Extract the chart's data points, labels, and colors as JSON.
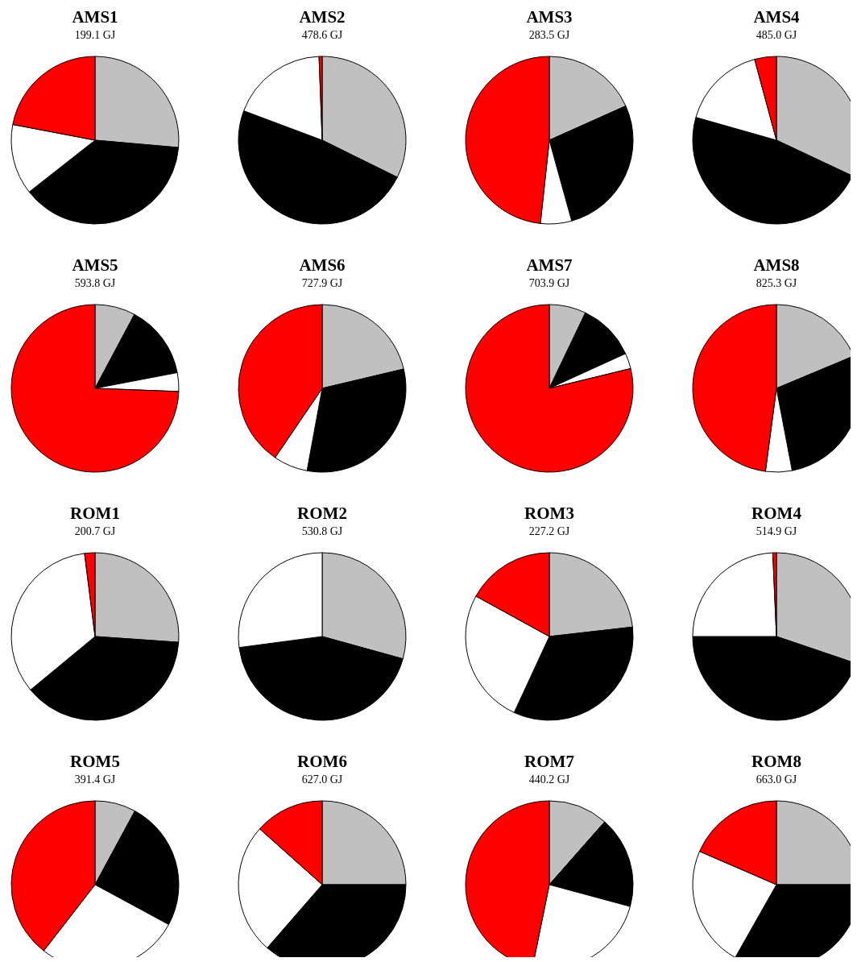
{
  "chart_data": [
    {
      "type": "pie",
      "title": "AMS1",
      "subtitle": "199.1 GJ",
      "categories": [
        null,
        null,
        null,
        null
      ],
      "values": [
        26.4,
        38.0,
        13.6,
        22.0
      ],
      "colors": [
        "#c0c0c0",
        "#000000",
        "#ffffff",
        "#ff0000"
      ]
    },
    {
      "type": "pie",
      "title": "AMS2",
      "subtitle": "478.6 GJ",
      "categories": [
        null,
        null,
        null,
        null
      ],
      "values": [
        32.3,
        48.4,
        18.7,
        0.6
      ],
      "colors": [
        "#c0c0c0",
        "#000000",
        "#ffffff",
        "#ff0000"
      ]
    },
    {
      "type": "pie",
      "title": "AMS3",
      "subtitle": "283.5 GJ",
      "categories": [
        null,
        null,
        null,
        null
      ],
      "values": [
        18.3,
        27.4,
        6.0,
        48.3
      ],
      "colors": [
        "#c0c0c0",
        "#000000",
        "#ffffff",
        "#ff0000"
      ]
    },
    {
      "type": "pie",
      "title": "AMS4",
      "subtitle": "485.0 GJ",
      "categories": [
        null,
        null,
        null,
        null
      ],
      "values": [
        32.0,
        47.4,
        16.4,
        4.2
      ],
      "colors": [
        "#c0c0c0",
        "#000000",
        "#ffffff",
        "#ff0000"
      ]
    },
    {
      "type": "pie",
      "title": "AMS5",
      "subtitle": "593.8 GJ",
      "categories": [
        null,
        null,
        null,
        null
      ],
      "values": [
        7.8,
        14.2,
        3.6,
        74.4
      ],
      "colors": [
        "#c0c0c0",
        "#000000",
        "#ffffff",
        "#ff0000"
      ]
    },
    {
      "type": "pie",
      "title": "AMS6",
      "subtitle": "727.9 GJ",
      "categories": [
        null,
        null,
        null,
        null
      ],
      "values": [
        21.3,
        31.6,
        6.6,
        40.5
      ],
      "colors": [
        "#c0c0c0",
        "#000000",
        "#ffffff",
        "#ff0000"
      ]
    },
    {
      "type": "pie",
      "title": "AMS7",
      "subtitle": "703.9 GJ",
      "categories": [
        null,
        null,
        null,
        null
      ],
      "values": [
        7.1,
        11.1,
        3.0,
        78.8
      ],
      "colors": [
        "#c0c0c0",
        "#000000",
        "#ffffff",
        "#ff0000"
      ]
    },
    {
      "type": "pie",
      "title": "AMS8",
      "subtitle": "825.3 GJ",
      "categories": [
        null,
        null,
        null,
        null
      ],
      "values": [
        18.7,
        28.3,
        5.1,
        47.9
      ],
      "colors": [
        "#c0c0c0",
        "#000000",
        "#ffffff",
        "#ff0000"
      ]
    },
    {
      "type": "pie",
      "title": "ROM1",
      "subtitle": "200.7 GJ",
      "categories": [
        null,
        null,
        null,
        null
      ],
      "values": [
        26.1,
        37.9,
        34.0,
        2.0
      ],
      "colors": [
        "#c0c0c0",
        "#000000",
        "#ffffff",
        "#ff0000"
      ]
    },
    {
      "type": "pie",
      "title": "ROM2",
      "subtitle": "530.8 GJ",
      "categories": [
        null,
        null,
        null
      ],
      "values": [
        29.3,
        43.6,
        27.1
      ],
      "colors": [
        "#c0c0c0",
        "#000000",
        "#ffffff"
      ]
    },
    {
      "type": "pie",
      "title": "ROM3",
      "subtitle": "227.2 GJ",
      "categories": [
        null,
        null,
        null,
        null
      ],
      "values": [
        23.2,
        33.7,
        26.1,
        17.0
      ],
      "colors": [
        "#c0c0c0",
        "#000000",
        "#ffffff",
        "#ff0000"
      ]
    },
    {
      "type": "pie",
      "title": "ROM4",
      "subtitle": "514.9 GJ",
      "categories": [
        null,
        null,
        null,
        null
      ],
      "values": [
        30.2,
        44.8,
        24.3,
        0.7
      ],
      "colors": [
        "#c0c0c0",
        "#000000",
        "#ffffff",
        "#ff0000"
      ]
    },
    {
      "type": "pie",
      "title": "ROM5",
      "subtitle": "391.4 GJ",
      "categories": [
        null,
        null,
        null,
        null
      ],
      "values": [
        7.9,
        25.0,
        27.6,
        39.5
      ],
      "colors": [
        "#c0c0c0",
        "#000000",
        "#ffffff",
        "#ff0000"
      ]
    },
    {
      "type": "pie",
      "title": "ROM6",
      "subtitle": "627.0 GJ",
      "categories": [
        null,
        null,
        null,
        null
      ],
      "values": [
        25.0,
        36.4,
        25.2,
        13.4
      ],
      "colors": [
        "#c0c0c0",
        "#000000",
        "#ffffff",
        "#ff0000"
      ]
    },
    {
      "type": "pie",
      "title": "ROM7",
      "subtitle": "440.2 GJ",
      "categories": [
        null,
        null,
        null,
        null
      ],
      "values": [
        11.5,
        17.7,
        24.0,
        46.8
      ],
      "colors": [
        "#c0c0c0",
        "#000000",
        "#ffffff",
        "#ff0000"
      ]
    },
    {
      "type": "pie",
      "title": "ROM8",
      "subtitle": "663.0 GJ",
      "categories": [
        null,
        null,
        null,
        null
      ],
      "values": [
        25.0,
        33.2,
        23.3,
        18.5
      ],
      "colors": [
        "#c0c0c0",
        "#000000",
        "#ffffff",
        "#ff0000"
      ]
    }
  ]
}
